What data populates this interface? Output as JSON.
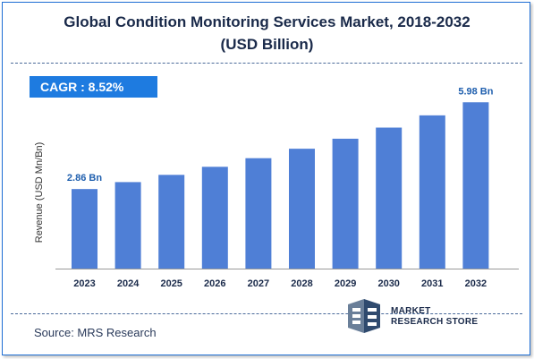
{
  "title_line1": "Global Condition Monitoring Services Market, 2018-2032",
  "title_line2": "(USD Billion)",
  "cagr_label": "CAGR : 8.52%",
  "source": "Source: MRS Research",
  "logo": {
    "line1": "MARKET",
    "line2": "RESEARCH STORE",
    "icon": "mrs-logo-icon"
  },
  "colors": {
    "bar": "#4f7fd6",
    "accent": "#1e7be0",
    "label": "#1f5fae"
  },
  "chart_data": {
    "type": "bar",
    "title": "Global Condition Monitoring Services Market, 2018-2032",
    "ylabel": "Revenue (USD Mn/Bn)",
    "xlabel": "",
    "categories": [
      "2023",
      "2024",
      "2025",
      "2026",
      "2027",
      "2028",
      "2029",
      "2030",
      "2031",
      "2032"
    ],
    "values": [
      2.86,
      3.11,
      3.37,
      3.66,
      3.97,
      4.31,
      4.67,
      5.07,
      5.51,
      5.98
    ],
    "data_labels": [
      {
        "index": 0,
        "text": "2.86 Bn"
      },
      {
        "index": 9,
        "text": "5.98 Bn"
      }
    ],
    "ylim": [
      0,
      6.6
    ],
    "grid": false,
    "legend": "none"
  }
}
